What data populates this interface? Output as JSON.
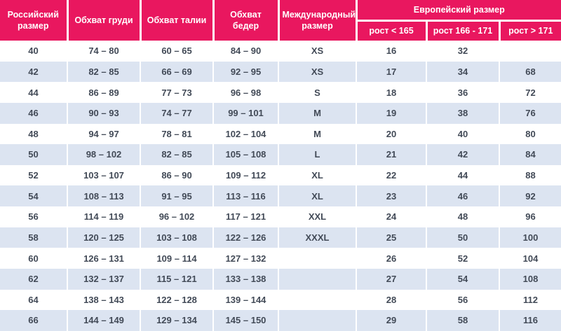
{
  "colors": {
    "header_bg": "#e9175f",
    "header_text": "#ffffff",
    "row_bg": "#ffffff",
    "row_alt_bg": "#dce4f1",
    "body_text": "#424a57"
  },
  "table": {
    "headers": {
      "russian_size": "Российский размер",
      "chest": "Обхват груди",
      "waist": "Обхват талии",
      "hips": "Обхват бедер",
      "international_size": "Международный размер",
      "european_size": "Европейский размер"
    },
    "european_subheaders": [
      "рост < 165",
      "рост 166 - 171",
      "рост > 171"
    ],
    "rows": [
      [
        "40",
        "74 – 80",
        "60 – 65",
        "84 – 90",
        "XS",
        "16",
        "32",
        ""
      ],
      [
        "42",
        "82 – 85",
        "66 – 69",
        "92 – 95",
        "XS",
        "17",
        "34",
        "68"
      ],
      [
        "44",
        "86 – 89",
        "77 – 73",
        "96 – 98",
        "S",
        "18",
        "36",
        "72"
      ],
      [
        "46",
        "90 – 93",
        "74 – 77",
        "99 – 101",
        "M",
        "19",
        "38",
        "76"
      ],
      [
        "48",
        "94 – 97",
        "78 – 81",
        "102 – 104",
        "M",
        "20",
        "40",
        "80"
      ],
      [
        "50",
        "98 – 102",
        "82 – 85",
        "105 – 108",
        "L",
        "21",
        "42",
        "84"
      ],
      [
        "52",
        "103 – 107",
        "86 – 90",
        "109 – 112",
        "XL",
        "22",
        "44",
        "88"
      ],
      [
        "54",
        "108 – 113",
        "91 – 95",
        "113 – 116",
        "XL",
        "23",
        "46",
        "92"
      ],
      [
        "56",
        "114 – 119",
        "96 – 102",
        "117 – 121",
        "XXL",
        "24",
        "48",
        "96"
      ],
      [
        "58",
        "120 – 125",
        "103 – 108",
        "122 – 126",
        "XXXL",
        "25",
        "50",
        "100"
      ],
      [
        "60",
        "126 – 131",
        "109 – 114",
        "127 – 132",
        "",
        "26",
        "52",
        "104"
      ],
      [
        "62",
        "132 – 137",
        "115 – 121",
        "133 – 138",
        "",
        "27",
        "54",
        "108"
      ],
      [
        "64",
        "138 – 143",
        "122 – 128",
        "139 – 144",
        "",
        "28",
        "56",
        "112"
      ],
      [
        "66",
        "144 – 149",
        "129 – 134",
        "145 – 150",
        "",
        "29",
        "58",
        "116"
      ]
    ]
  }
}
